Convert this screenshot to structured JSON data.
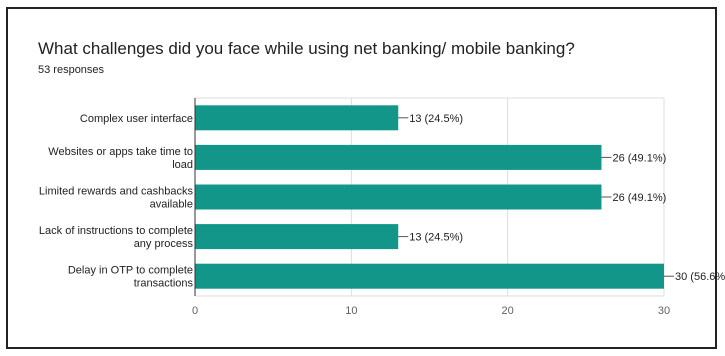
{
  "title": "What challenges did you face while using net banking/ mobile banking?",
  "subtitle": "53 responses",
  "chart_data": {
    "type": "bar",
    "orientation": "horizontal",
    "title": "What challenges did you face while using net banking/ mobile banking?",
    "subtitle": "53 responses",
    "categories": [
      [
        "Complex user interface"
      ],
      [
        "Websites or apps take time to",
        "load"
      ],
      [
        "Limited rewards and cashbacks",
        "available"
      ],
      [
        "Lack of instructions to complete",
        "any process"
      ],
      [
        "Delay in OTP to complete",
        "transactions"
      ]
    ],
    "values": [
      13,
      26,
      26,
      13,
      30
    ],
    "value_labels": [
      "13 (24.5%)",
      "26 (49.1%)",
      "26 (49.1%)",
      "13 (24.5%)",
      "30 (56.6%"
    ],
    "xlim": [
      0,
      30
    ],
    "xticks": [
      0,
      10,
      20,
      30
    ],
    "grid": true,
    "bar_color": "#12968a",
    "grid_color": "#dddddd"
  }
}
